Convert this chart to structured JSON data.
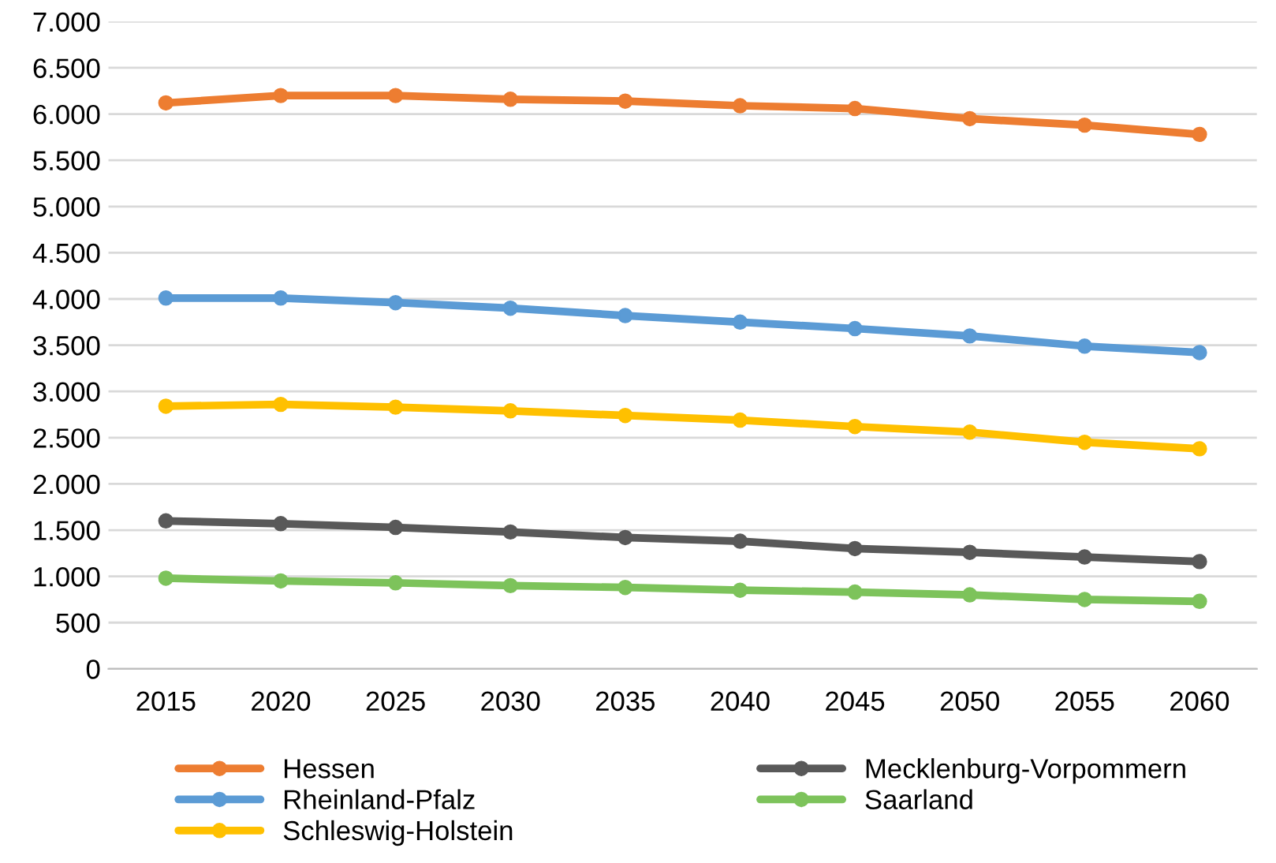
{
  "chart_data": {
    "type": "line",
    "categories": [
      "2015",
      "2020",
      "2025",
      "2030",
      "2035",
      "2040",
      "2045",
      "2050",
      "2055",
      "2060"
    ],
    "series": [
      {
        "name": "Hessen",
        "color": "#ed7d31",
        "values": [
          6120,
          6200,
          6200,
          6160,
          6140,
          6090,
          6060,
          5950,
          5880,
          5780
        ]
      },
      {
        "name": "Rheinland-Pfalz",
        "color": "#5b9bd5",
        "values": [
          4010,
          4010,
          3960,
          3900,
          3820,
          3750,
          3680,
          3600,
          3490,
          3420
        ]
      },
      {
        "name": "Schleswig-Holstein",
        "color": "#ffc000",
        "values": [
          2840,
          2860,
          2830,
          2790,
          2740,
          2690,
          2620,
          2560,
          2450,
          2380
        ]
      },
      {
        "name": "Mecklenburg-Vorpommern",
        "color": "#595959",
        "values": [
          1600,
          1570,
          1530,
          1480,
          1420,
          1380,
          1300,
          1260,
          1210,
          1160
        ]
      },
      {
        "name": "Saarland",
        "color": "#7dc35b",
        "values": [
          980,
          950,
          930,
          900,
          880,
          850,
          830,
          800,
          750,
          730
        ]
      }
    ],
    "ylim": [
      0,
      7000
    ],
    "yticks": [
      0,
      500,
      {
        "value": 1000,
        "label": "1.000"
      },
      {
        "value": 1500,
        "label": "1.500"
      },
      {
        "value": 2000,
        "label": "2.000"
      },
      {
        "value": 2500,
        "label": "2.500"
      },
      {
        "value": 3000,
        "label": "3.000"
      },
      {
        "value": 3500,
        "label": "3.500"
      },
      {
        "value": 4000,
        "label": "4.000"
      },
      {
        "value": 4500,
        "label": "4.500"
      },
      {
        "value": 5000,
        "label": "5.000"
      },
      {
        "value": 5500,
        "label": "5.500"
      },
      {
        "value": 6000,
        "label": "6.000"
      },
      {
        "value": 6500,
        "label": "6.500"
      },
      {
        "value": 7000,
        "label": "7.000"
      }
    ],
    "grid": "y",
    "legend": "bottom",
    "marker": "circle",
    "line_style": "solid"
  }
}
